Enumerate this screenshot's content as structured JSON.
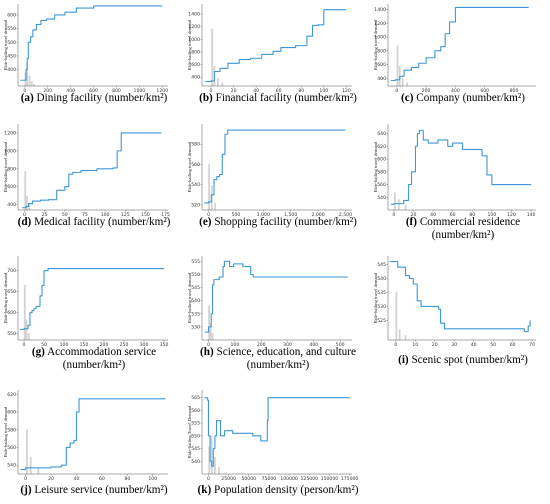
{
  "chart_data": [
    {
      "id": "a",
      "type": "line",
      "caption_letter": "(a)",
      "caption_text": "Dining facility (number/km²)",
      "ylabel": "Ride-hailing travel demand",
      "xlim": [
        -60,
        1250
      ],
      "ylim": [
        340,
        640
      ],
      "xticks": [
        0,
        200,
        400,
        600,
        800,
        1000,
        1200
      ],
      "yticks": [
        400,
        450,
        500,
        550,
        600
      ],
      "line_color": "#3f97d6",
      "x": [
        -40,
        0,
        10,
        20,
        30,
        50,
        70,
        100,
        140,
        190,
        260,
        350,
        450,
        600,
        1200
      ],
      "y": [
        361,
        362,
        400,
        440,
        500,
        520,
        545,
        565,
        580,
        585,
        600,
        610,
        625,
        633,
        633
      ],
      "hist": [
        [
          5,
          0.2
        ],
        [
          20,
          0.35
        ],
        [
          40,
          0.15
        ],
        [
          60,
          0.07
        ],
        [
          80,
          0.03
        ]
      ]
    },
    {
      "id": "b",
      "type": "line",
      "caption_letter": "(b)",
      "caption_text": "Financial facility (number/km²)",
      "ylabel": "Ride-hailing travel demand",
      "xlim": [
        -8,
        125
      ],
      "ylim": [
        260,
        1560
      ],
      "xticks": [
        0,
        20,
        40,
        60,
        80,
        100,
        120
      ],
      "yticks": [
        400,
        600,
        800,
        1000,
        1200,
        1400
      ],
      "line_color": "#3f97d6",
      "x": [
        -5,
        0,
        3,
        8,
        15,
        25,
        35,
        45,
        55,
        62,
        75,
        85,
        90,
        95,
        100,
        120
      ],
      "y": [
        330,
        340,
        490,
        540,
        620,
        680,
        700,
        760,
        810,
        870,
        900,
        1050,
        1220,
        1230,
        1470,
        1470
      ],
      "hist": [
        [
          1,
          0.85
        ],
        [
          3,
          0.3
        ],
        [
          6,
          0.12
        ],
        [
          10,
          0.05
        ]
      ]
    },
    {
      "id": "c",
      "type": "line",
      "caption_letter": "(c)",
      "caption_text": "Company (number/km²)",
      "ylabel": "Ride-hailing travel demand",
      "xlim": [
        -60,
        950
      ],
      "ylim": [
        290,
        1480
      ],
      "xticks": [
        0,
        200,
        400,
        600,
        800
      ],
      "yticks": [
        400,
        600,
        800,
        1000,
        1200,
        1400
      ],
      "line_color": "#3f97d6",
      "x": [
        -40,
        -10,
        20,
        50,
        100,
        150,
        200,
        260,
        300,
        330,
        360,
        400,
        900
      ],
      "y": [
        370,
        380,
        430,
        520,
        560,
        620,
        700,
        800,
        860,
        1050,
        1220,
        1430,
        1430
      ],
      "hist": [
        [
          5,
          0.6
        ],
        [
          20,
          0.3
        ],
        [
          40,
          0.12
        ],
        [
          70,
          0.05
        ]
      ]
    },
    {
      "id": "d",
      "type": "line",
      "caption_letter": "(d)",
      "caption_text": "Medical facility (number/km²)",
      "ylabel": "Ride-hailing travel demand",
      "xlim": [
        -8,
        178
      ],
      "ylim": [
        340,
        1300
      ],
      "xticks": [
        0,
        25,
        50,
        75,
        100,
        125,
        150,
        175
      ],
      "yticks": [
        400,
        600,
        800,
        1000,
        1200
      ],
      "line_color": "#3f97d6",
      "x": [
        -3,
        2,
        5,
        10,
        20,
        30,
        40,
        50,
        55,
        60,
        70,
        90,
        110,
        115,
        120,
        170
      ],
      "y": [
        365,
        380,
        410,
        440,
        450,
        455,
        560,
        600,
        740,
        760,
        780,
        800,
        810,
        1000,
        1200,
        1200
      ],
      "hist": [
        [
          1,
          0.55
        ],
        [
          3,
          0.2
        ],
        [
          6,
          0.08
        ]
      ]
    },
    {
      "id": "e",
      "type": "line",
      "caption_letter": "(e)",
      "caption_text": "Shopping facility (number/km²)",
      "ylabel": "Ride-hailing travel demand",
      "xlim": [
        -120,
        2620
      ],
      "ylim": [
        515,
        600
      ],
      "xticks": [
        0,
        500,
        1000,
        1500,
        2000,
        2500
      ],
      "xtick_labels": [
        "0",
        "500",
        "1,000",
        "1,500",
        "2,000",
        "2,500"
      ],
      "yticks": [
        520,
        540,
        560,
        580
      ],
      "line_color": "#3f97d6",
      "x": [
        -80,
        0,
        50,
        100,
        150,
        200,
        250,
        300,
        350,
        2500
      ],
      "y": [
        522,
        523,
        530,
        545,
        548,
        550,
        570,
        590,
        594,
        594
      ],
      "hist": [
        [
          10,
          0.65
        ],
        [
          60,
          0.35
        ],
        [
          120,
          0.1
        ]
      ]
    },
    {
      "id": "f",
      "type": "line",
      "caption_letter": "(f)",
      "caption_text": "Commercial residence (number/km²)",
      "ylabel": "Ride-hailing travel demand",
      "xlim": [
        -6,
        145
      ],
      "ylim": [
        520,
        655
      ],
      "xticks": [
        0,
        20,
        40,
        60,
        80,
        100,
        120,
        140
      ],
      "yticks": [
        540,
        560,
        580,
        600,
        620,
        640
      ],
      "line_color": "#3f97d6",
      "x": [
        -3,
        0,
        10,
        15,
        18,
        22,
        24,
        26,
        30,
        35,
        45,
        55,
        60,
        70,
        85,
        90,
        95,
        100,
        140
      ],
      "y": [
        529,
        530,
        535,
        560,
        580,
        620,
        640,
        645,
        630,
        625,
        630,
        620,
        625,
        615,
        615,
        605,
        575,
        560,
        560
      ],
      "hist": [
        [
          1,
          0.25
        ],
        [
          5,
          0.15
        ],
        [
          12,
          0.08
        ]
      ]
    },
    {
      "id": "g",
      "type": "line",
      "caption_letter": "(g)",
      "caption_text": "Accommodation service (number/km²)",
      "ylabel": "Ride-hailing travel demand",
      "xlim": [
        -15,
        360
      ],
      "ylim": [
        535,
        735
      ],
      "xticks": [
        0,
        50,
        100,
        150,
        200,
        250,
        300,
        350
      ],
      "yticks": [
        550,
        600,
        650,
        700
      ],
      "line_color": "#3f97d6",
      "x": [
        -10,
        0,
        10,
        15,
        20,
        25,
        30,
        40,
        45,
        50,
        60,
        350
      ],
      "y": [
        560,
        562,
        570,
        600,
        605,
        610,
        615,
        640,
        665,
        700,
        705,
        705
      ],
      "hist": [
        [
          2,
          0.8
        ],
        [
          6,
          0.3
        ],
        [
          12,
          0.1
        ]
      ]
    },
    {
      "id": "h",
      "type": "line",
      "caption_letter": "(h)",
      "caption_text": "Science, education, and culture (number/km²)",
      "ylabel": "Ride-hailing travel demand",
      "xlim": [
        -25,
        545
      ],
      "ylim": [
        525,
        557
      ],
      "xticks": [
        0,
        100,
        200,
        300,
        400,
        500
      ],
      "yticks": [
        530,
        535,
        540,
        545,
        550,
        555
      ],
      "line_color": "#3f97d6",
      "x": [
        -15,
        0,
        10,
        15,
        20,
        30,
        40,
        55,
        60,
        80,
        95,
        110,
        130,
        150,
        160,
        170,
        530
      ],
      "y": [
        528,
        530,
        535,
        546,
        548,
        548,
        549,
        553,
        555,
        553,
        554,
        554,
        553,
        553,
        550,
        549,
        549
      ],
      "hist": [
        [
          2,
          0.5
        ],
        [
          8,
          0.25
        ],
        [
          15,
          0.1
        ]
      ]
    },
    {
      "id": "i",
      "type": "line",
      "caption_letter": "(i)",
      "caption_text": "Scenic spot (number/km²)",
      "ylabel": "Ride-hailing travel demand",
      "xlim": [
        -4,
        72
      ],
      "ylim": [
        518,
        548
      ],
      "xticks": [
        0,
        10,
        20,
        30,
        40,
        50,
        60,
        70
      ],
      "yticks": [
        525,
        530,
        535,
        540,
        545
      ],
      "line_color": "#3f97d6",
      "x": [
        -3,
        0,
        1,
        2,
        5,
        7,
        9,
        11,
        13,
        16,
        20,
        22,
        23,
        25,
        64,
        66,
        68,
        69
      ],
      "y": [
        546,
        546,
        544,
        544,
        541,
        540,
        538,
        532,
        530,
        530,
        530,
        529,
        524,
        522,
        522,
        521,
        523,
        525
      ],
      "hist": [
        [
          0.3,
          0.7
        ],
        [
          2,
          0.15
        ],
        [
          5,
          0.07
        ]
      ]
    },
    {
      "id": "j",
      "type": "line",
      "caption_letter": "(j)",
      "caption_text": "Leisure service (number/km²)",
      "ylabel": "Ride-hailing travel demand",
      "xlim": [
        -6,
        112
      ],
      "ylim": [
        530,
        625
      ],
      "xticks": [
        0,
        20,
        40,
        60,
        80,
        100
      ],
      "yticks": [
        540,
        560,
        580,
        600,
        620
      ],
      "line_color": "#3f97d6",
      "x": [
        -4,
        0,
        5,
        10,
        20,
        28,
        32,
        35,
        38,
        40,
        42,
        110
      ],
      "y": [
        535,
        537,
        537,
        537,
        538,
        540,
        560,
        565,
        568,
        600,
        615,
        615
      ],
      "hist": [
        [
          1,
          0.65
        ],
        [
          4,
          0.25
        ],
        [
          10,
          0.08
        ]
      ]
    },
    {
      "id": "k",
      "type": "line",
      "caption_letter": "(k)",
      "caption_text": "Population density (person/km²)",
      "ylabel": "Ride-hailing Travel Demand",
      "xlim": [
        -8000,
        178000
      ],
      "ylim": [
        535,
        568
      ],
      "xticks": [
        0,
        25000,
        50000,
        75000,
        100000,
        125000,
        150000,
        175000
      ],
      "yticks": [
        540,
        545,
        550,
        555,
        560,
        565
      ],
      "line_color": "#3f97d6",
      "x": [
        -5000,
        -1000,
        0,
        2000,
        4000,
        6000,
        8000,
        10000,
        15000,
        20000,
        30000,
        40000,
        55000,
        65000,
        72000,
        73000,
        74000,
        175000
      ],
      "y": [
        565,
        564,
        550,
        540,
        538,
        545,
        550,
        556,
        550,
        552,
        551,
        551,
        550,
        548,
        548,
        556,
        565,
        565
      ],
      "hist": [
        [
          1000,
          0.4
        ],
        [
          4000,
          0.55
        ],
        [
          8000,
          0.25
        ],
        [
          13000,
          0.1
        ]
      ]
    }
  ]
}
